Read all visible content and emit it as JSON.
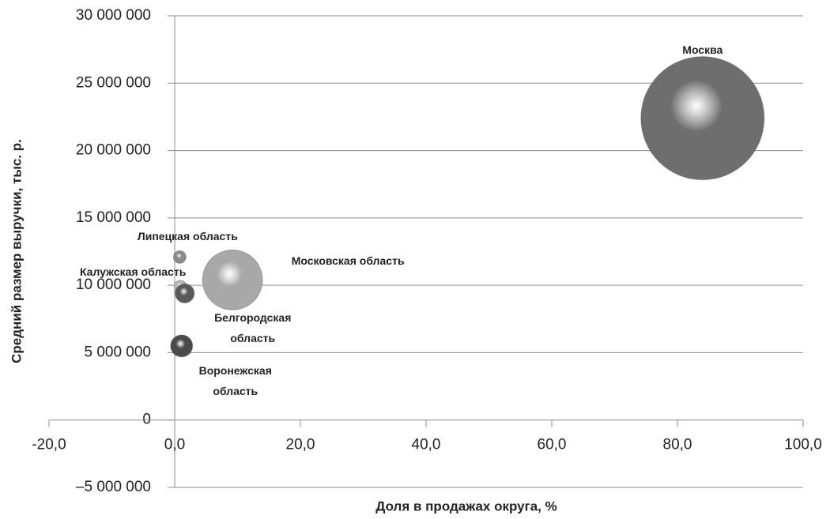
{
  "chart_data": {
    "type": "bubble",
    "x_label": "Доля в продажах округа, %",
    "y_label": "Средний размер выручки, тыс. р.",
    "categories": [
      "Москва",
      "Московская область",
      "Липецкая область",
      "Калужская область",
      "Белгородская область",
      "Воронежская область"
    ],
    "x": [
      84.0,
      9.2,
      0.8,
      0.9,
      1.6,
      1.1
    ],
    "values": [
      22400000,
      10400000,
      12100000,
      9900000,
      9400000,
      5500000
    ],
    "sizes": [
      100,
      23.7,
      1.05,
      1.05,
      2.4,
      3.2
    ],
    "colors": [
      "#6e6e6e",
      "#a8a8a8",
      "#8a8a8a",
      "#b8b8b8",
      "#5a5a5a",
      "#4a4a4a"
    ],
    "xlim": [
      -20,
      100
    ],
    "xticks": [
      {
        "value": -20,
        "label": "-20,0"
      },
      {
        "value": 0,
        "label": "0,0"
      },
      {
        "value": 20,
        "label": "20,0"
      },
      {
        "value": 40,
        "label": "40,0"
      },
      {
        "value": 60,
        "label": "60,0"
      },
      {
        "value": 80,
        "label": "80,0"
      },
      {
        "value": 100,
        "label": "100,0"
      }
    ],
    "ylim": [
      -5000000,
      30000000
    ],
    "yticks": [
      {
        "value": -5000000,
        "label": "–5 000 000"
      },
      {
        "value": 0,
        "label": "0"
      },
      {
        "value": 5000000,
        "label": "5 000 000"
      },
      {
        "value": 10000000,
        "label": "10 000 000"
      },
      {
        "value": 15000000,
        "label": "15 000 000"
      },
      {
        "value": 20000000,
        "label": "20 000 000"
      },
      {
        "value": 25000000,
        "label": "25 000 000"
      },
      {
        "value": 30000000,
        "label": "30 000 000"
      }
    ],
    "grid": true
  }
}
